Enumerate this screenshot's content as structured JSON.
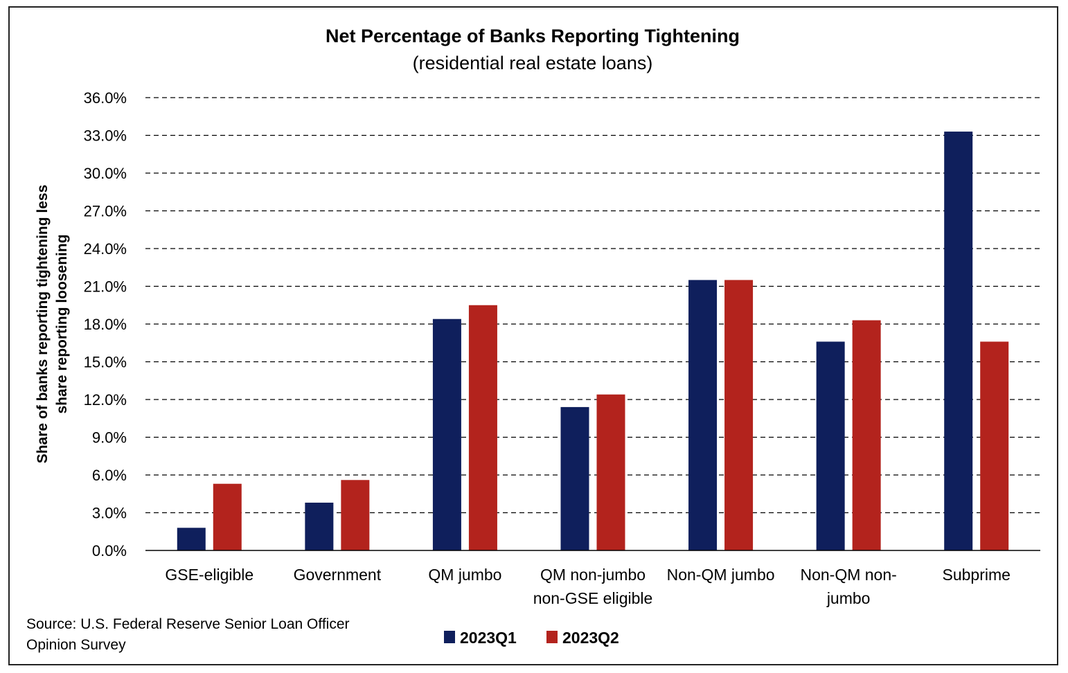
{
  "chart_data": {
    "type": "bar",
    "title": "Net Percentage of Banks Reporting Tightening",
    "subtitle": "(residential real estate loans)",
    "ylabel_lines": [
      "Share of banks reporting tightening less",
      "share reporting loosening"
    ],
    "xlabel": "",
    "ylim": [
      0,
      36
    ],
    "yticks": [
      0,
      3,
      6,
      9,
      12,
      15,
      18,
      21,
      24,
      27,
      30,
      33,
      36
    ],
    "ytick_labels": [
      "0.0%",
      "3.0%",
      "6.0%",
      "9.0%",
      "12.0%",
      "15.0%",
      "18.0%",
      "21.0%",
      "24.0%",
      "27.0%",
      "30.0%",
      "33.0%",
      "36.0%"
    ],
    "grid": true,
    "categories": [
      [
        "GSE-eligible"
      ],
      [
        "Government"
      ],
      [
        "QM jumbo"
      ],
      [
        "QM non-jumbo",
        "non-GSE eligible"
      ],
      [
        "Non-QM jumbo"
      ],
      [
        "Non-QM non-",
        "jumbo"
      ],
      [
        "Subprime"
      ]
    ],
    "series": [
      {
        "name": "2023Q1",
        "color": "#0f1f5c",
        "values": [
          1.8,
          3.8,
          18.4,
          11.4,
          21.5,
          16.6,
          33.3
        ]
      },
      {
        "name": "2023Q2",
        "color": "#b3231d",
        "values": [
          5.3,
          5.6,
          19.5,
          12.4,
          21.5,
          18.3,
          16.6
        ]
      }
    ],
    "legend_position": "bottom-center",
    "source_lines": [
      "Source: U.S. Federal Reserve Senior Loan Officer",
      "Opinion Survey"
    ]
  }
}
